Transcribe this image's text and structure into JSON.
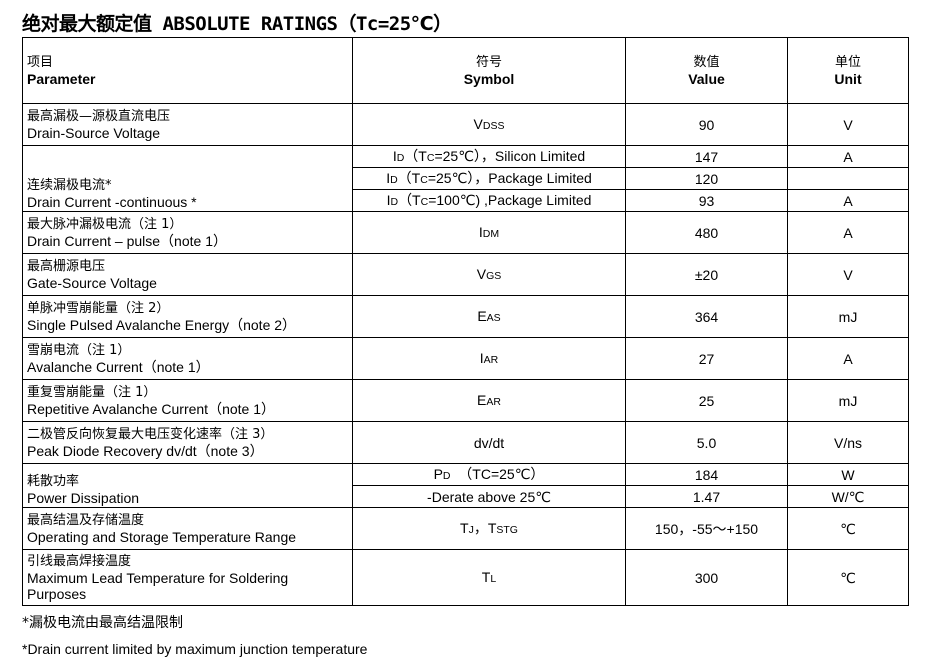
{
  "title": "绝对最大额定值 ABSOLUTE RATINGS（Tc=25℃）",
  "header": {
    "param_cn": "项目",
    "param_en": "Parameter",
    "symbol_cn": "符号",
    "symbol_en": "Symbol",
    "value_cn": "数值",
    "value_en": "Value",
    "unit_cn": "单位",
    "unit_en": "Unit"
  },
  "rows": [
    {
      "cn": "最高漏极—源极直流电压",
      "en": "Drain-Source Voltage",
      "subs": [
        {
          "symbol": [
            [
              "V",
              0
            ],
            [
              "DSS",
              1
            ]
          ],
          "value": "90",
          "unit": "V"
        }
      ]
    },
    {
      "cn": "连续漏极电流*",
      "en": "Drain Current -continuous *",
      "subs": [
        {
          "symbol": [
            [
              "I",
              0
            ],
            [
              "D",
              1
            ],
            [
              "（T",
              0
            ],
            [
              "C",
              1
            ],
            [
              "=25℃），Silicon Limited",
              0
            ]
          ],
          "value": "147",
          "unit": "A"
        },
        {
          "symbol": [
            [
              "I",
              0
            ],
            [
              "D",
              1
            ],
            [
              "（T",
              0
            ],
            [
              "C",
              1
            ],
            [
              "=25℃），Package Limited",
              0
            ]
          ],
          "value": "120",
          "unit": ""
        },
        {
          "symbol": [
            [
              "I",
              0
            ],
            [
              "D",
              1
            ],
            [
              "（T",
              0
            ],
            [
              "C",
              1
            ],
            [
              "=100℃) ,Package Limited",
              0
            ]
          ],
          "value": "93",
          "unit": "A"
        }
      ]
    },
    {
      "cn": "最大脉冲漏极电流（注 1）",
      "en": "Drain Current – pulse（note 1）",
      "subs": [
        {
          "symbol": [
            [
              "I",
              0
            ],
            [
              "DM",
              1
            ]
          ],
          "value": "480",
          "unit": "A"
        }
      ]
    },
    {
      "cn": "最高栅源电压",
      "en": "Gate-Source Voltage",
      "subs": [
        {
          "symbol": [
            [
              "V",
              0
            ],
            [
              "GS",
              1
            ]
          ],
          "value": "±20",
          "unit": "V"
        }
      ]
    },
    {
      "cn": "单脉冲雪崩能量（注 2）",
      "en": "Single Pulsed Avalanche Energy（note 2）",
      "subs": [
        {
          "symbol": [
            [
              "E",
              0
            ],
            [
              "AS",
              1
            ]
          ],
          "value": "364",
          "unit": "mJ"
        }
      ]
    },
    {
      "cn": "雪崩电流（注 1）",
      "en": "Avalanche Current（note 1）",
      "subs": [
        {
          "symbol": [
            [
              "I",
              0
            ],
            [
              "AR",
              1
            ]
          ],
          "value": "27",
          "unit": "A"
        }
      ]
    },
    {
      "cn": "重复雪崩能量（注 1）",
      "en": "Repetitive Avalanche Current（note 1）",
      "subs": [
        {
          "symbol": [
            [
              "E",
              0
            ],
            [
              "AR",
              1
            ]
          ],
          "value": "25",
          "unit": "mJ"
        }
      ]
    },
    {
      "cn": "二极管反向恢复最大电压变化速率（注 3）",
      "en": " Peak Diode Recovery dv/dt（note 3）",
      "subs": [
        {
          "symbol": [
            [
              "dv/dt",
              0
            ]
          ],
          "value": "5.0",
          "unit": "V/ns"
        }
      ]
    },
    {
      "cn": "耗散功率",
      "en": "Power Dissipation",
      "subs": [
        {
          "symbol": [
            [
              "P",
              0
            ],
            [
              "D",
              1
            ],
            [
              "  （TC=25℃）",
              0
            ]
          ],
          "value": "184",
          "unit": "W"
        },
        {
          "symbol": [
            [
              "-Derate above 25℃",
              0
            ]
          ],
          "value": "1.47",
          "unit": "W/℃"
        }
      ]
    },
    {
      "cn": "最高结温及存储温度",
      "en": "Operating and Storage Temperature Range",
      "subs": [
        {
          "symbol": [
            [
              "T",
              0
            ],
            [
              "J",
              1
            ],
            [
              "，T",
              0
            ],
            [
              "STG",
              1
            ]
          ],
          "value": "150，-55～+150",
          "unit": "℃"
        }
      ]
    },
    {
      "cn": "引线最高焊接温度",
      "en": "Maximum Lead Temperature for Soldering Purposes",
      "subs": [
        {
          "symbol": [
            [
              "T",
              0
            ],
            [
              "L",
              1
            ]
          ],
          "value": "300",
          "unit": "℃"
        }
      ]
    }
  ],
  "footnotes": [
    "*漏极电流由最高结温限制",
    "*Drain current limited by maximum junction temperature"
  ]
}
